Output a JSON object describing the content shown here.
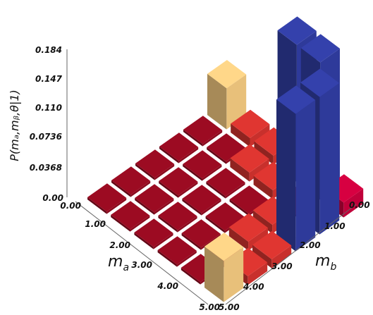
{
  "chart_data": {
    "type": "bar3d",
    "title": "",
    "xlabel": "m_b",
    "ylabel": "m_a",
    "zlabel": "P(m_a, m_b, θ|1)",
    "xlabel_parts": [
      "m",
      "b"
    ],
    "ylabel_parts": [
      "m",
      "a"
    ],
    "zlabel_text": "P(mₐ,mᵦ,θ|1)",
    "z_ticks": [
      "0.00",
      "0.0368",
      "0.110",
      "0.147",
      "0.184"
    ],
    "z_tick_values": [
      0.0,
      0.0368,
      0.11,
      0.147,
      0.184
    ],
    "z_tick_extra": {
      "label": "0.0736",
      "value": 0.0736
    },
    "ma_ticks": [
      "0.00",
      "1.00",
      "2.00",
      "3.00",
      "4.00",
      "5.00"
    ],
    "mb_ticks": [
      "0.00",
      "1.00",
      "2.00",
      "3.00",
      "4.00",
      "5.00"
    ],
    "zlim": [
      0,
      0.184
    ],
    "grid": false,
    "bars": [
      {
        "ma": 0,
        "mb": 0,
        "value": 0.003,
        "color": "#8b0a1e"
      },
      {
        "ma": 0,
        "mb": 1,
        "value": 0.003,
        "color": "#8b0a1e"
      },
      {
        "ma": 0,
        "mb": 2,
        "value": 0.003,
        "color": "#8b0a1e"
      },
      {
        "ma": 0,
        "mb": 3,
        "value": 0.003,
        "color": "#8b0a1e"
      },
      {
        "ma": 0,
        "mb": 4,
        "value": 0.003,
        "color": "#8b0a1e"
      },
      {
        "ma": 0,
        "mb": 5,
        "value": 0.003,
        "color": "#8b0a1e"
      },
      {
        "ma": 1,
        "mb": 0,
        "value": 0.003,
        "color": "#8b0a1e"
      },
      {
        "ma": 1,
        "mb": 1,
        "value": 0.003,
        "color": "#8b0a1e"
      },
      {
        "ma": 1,
        "mb": 2,
        "value": 0.003,
        "color": "#8b0a1e"
      },
      {
        "ma": 1,
        "mb": 3,
        "value": 0.003,
        "color": "#8b0a1e"
      },
      {
        "ma": 1,
        "mb": 4,
        "value": 0.003,
        "color": "#8b0a1e"
      },
      {
        "ma": 1,
        "mb": 5,
        "value": 0.003,
        "color": "#8b0a1e"
      },
      {
        "ma": 2,
        "mb": 0,
        "value": 0.003,
        "color": "#8b0a1e"
      },
      {
        "ma": 2,
        "mb": 1,
        "value": 0.003,
        "color": "#8b0a1e"
      },
      {
        "ma": 2,
        "mb": 2,
        "value": 0.003,
        "color": "#8b0a1e"
      },
      {
        "ma": 2,
        "mb": 3,
        "value": 0.003,
        "color": "#8b0a1e"
      },
      {
        "ma": 2,
        "mb": 4,
        "value": 0.003,
        "color": "#8b0a1e"
      },
      {
        "ma": 2,
        "mb": 5,
        "value": 0.003,
        "color": "#8b0a1e"
      },
      {
        "ma": 3,
        "mb": 0,
        "value": 0.003,
        "color": "#8b0a1e"
      },
      {
        "ma": 3,
        "mb": 1,
        "value": 0.003,
        "color": "#8b0a1e"
      },
      {
        "ma": 3,
        "mb": 2,
        "value": 0.003,
        "color": "#8b0a1e"
      },
      {
        "ma": 3,
        "mb": 3,
        "value": 0.003,
        "color": "#8b0a1e"
      },
      {
        "ma": 3,
        "mb": 4,
        "value": 0.003,
        "color": "#8b0a1e"
      },
      {
        "ma": 3,
        "mb": 5,
        "value": 0.003,
        "color": "#8b0a1e"
      },
      {
        "ma": 4,
        "mb": 0,
        "value": 0.003,
        "color": "#8b0a1e"
      },
      {
        "ma": 4,
        "mb": 1,
        "value": 0.003,
        "color": "#8b0a1e"
      },
      {
        "ma": 4,
        "mb": 2,
        "value": 0.003,
        "color": "#8b0a1e"
      },
      {
        "ma": 4,
        "mb": 3,
        "value": 0.003,
        "color": "#8b0a1e"
      },
      {
        "ma": 4,
        "mb": 4,
        "value": 0.003,
        "color": "#8b0a1e"
      },
      {
        "ma": 4,
        "mb": 5,
        "value": 0.003,
        "color": "#8b0a1e"
      },
      {
        "ma": 5,
        "mb": 0,
        "value": 0.003,
        "color": "#8b0a1e"
      },
      {
        "ma": 5,
        "mb": 1,
        "value": 0.003,
        "color": "#8b0a1e"
      },
      {
        "ma": 5,
        "mb": 2,
        "value": 0.003,
        "color": "#8b0a1e"
      },
      {
        "ma": 5,
        "mb": 3,
        "value": 0.003,
        "color": "#8b0a1e"
      },
      {
        "ma": 5,
        "mb": 4,
        "value": 0.003,
        "color": "#8b0a1e"
      },
      {
        "ma": 5,
        "mb": 5,
        "value": 0.003,
        "color": "#8b0a1e"
      }
    ],
    "tall_bars": [
      {
        "ma": 5,
        "mb": 1,
        "value": 0.012,
        "color": "#c8302c"
      },
      {
        "ma": 4,
        "mb": 2,
        "value": 0.012,
        "color": "#c8302c"
      },
      {
        "ma": 2,
        "mb": 4,
        "value": 0.012,
        "color": "#c8302c"
      },
      {
        "ma": 1,
        "mb": 5,
        "value": 0.012,
        "color": "#c8302c"
      },
      {
        "ma": 5,
        "mb": 2,
        "value": 0.012,
        "color": "#c8302c"
      },
      {
        "ma": 2,
        "mb": 5,
        "value": 0.012,
        "color": "#c8302c"
      },
      {
        "ma": 4,
        "mb": 3,
        "value": 0.012,
        "color": "#c8302c"
      },
      {
        "ma": 3,
        "mb": 4,
        "value": 0.012,
        "color": "#c8302c"
      },
      {
        "ma": 5,
        "mb": 0,
        "value": 0.055,
        "color": "#e8c07a"
      },
      {
        "ma": 0,
        "mb": 5,
        "value": 0.055,
        "color": "#e8c07a"
      },
      {
        "ma": 4,
        "mb": 5,
        "value": 0.184,
        "color": "#2e3a9a"
      },
      {
        "ma": 5,
        "mb": 4,
        "value": 0.184,
        "color": "#2e3a9a"
      },
      {
        "ma": 3,
        "mb": 5,
        "value": 0.184,
        "color": "#2e3a9a"
      },
      {
        "ma": 5,
        "mb": 3,
        "value": 0.184,
        "color": "#2e3a9a"
      },
      {
        "ma": 5,
        "mb": 5,
        "value": 0.02,
        "color": "#c0003a"
      }
    ]
  }
}
